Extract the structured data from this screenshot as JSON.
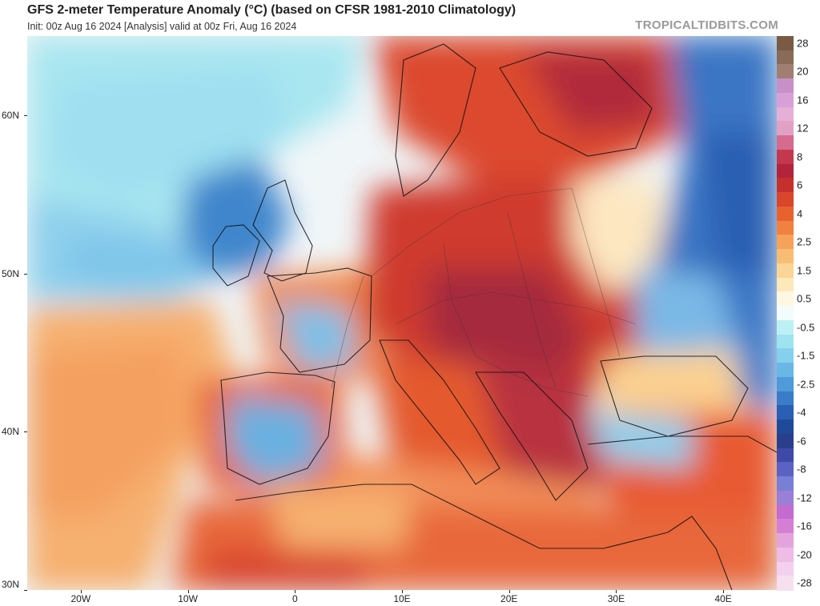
{
  "header": {
    "title": "GFS 2-meter Temperature Anomaly (°C) (based on CFSR 1981-2010 Climatology)",
    "subtitle": "Init: 00z Aug 16 2024   [Analysis]   valid at 00z Fri, Aug 16 2024",
    "brand": "TROPICALTIDBITS.COM"
  },
  "map": {
    "lat_range": [
      30,
      65
    ],
    "lon_range": [
      -25,
      45
    ],
    "lat_labels": [
      {
        "lat": 60,
        "text": "60N"
      },
      {
        "lat": 50,
        "text": "50N"
      },
      {
        "lat": 40,
        "text": "40N"
      },
      {
        "lat": 30,
        "text": "30N"
      }
    ],
    "lon_labels": [
      {
        "lon": -20,
        "text": "20W"
      },
      {
        "lon": -10,
        "text": "10W"
      },
      {
        "lon": 0,
        "text": "0"
      },
      {
        "lon": 10,
        "text": "10E"
      },
      {
        "lon": 20,
        "text": "20E"
      },
      {
        "lon": 30,
        "text": "30E"
      },
      {
        "lon": 40,
        "text": "40E"
      }
    ]
  },
  "colorbar": {
    "bins": [
      {
        "label": "28",
        "color": "#7a5a45"
      },
      {
        "label": "",
        "color": "#8a6a58"
      },
      {
        "label": "20",
        "color": "#a07f72"
      },
      {
        "label": "",
        "color": "#c890c8"
      },
      {
        "label": "16",
        "color": "#d9a0d8"
      },
      {
        "label": "",
        "color": "#e6b0d6"
      },
      {
        "label": "12",
        "color": "#e3a0c6"
      },
      {
        "label": "",
        "color": "#d56b8e"
      },
      {
        "label": "8",
        "color": "#c4384f"
      },
      {
        "label": "",
        "color": "#b3243c"
      },
      {
        "label": "6",
        "color": "#c6302c"
      },
      {
        "label": "",
        "color": "#d9462b"
      },
      {
        "label": "4",
        "color": "#e8622f"
      },
      {
        "label": "",
        "color": "#f0813e"
      },
      {
        "label": "2.5",
        "color": "#f6a25a"
      },
      {
        "label": "",
        "color": "#f8bd75"
      },
      {
        "label": "1.5",
        "color": "#fbd595"
      },
      {
        "label": "",
        "color": "#fce8b8"
      },
      {
        "label": "0.5",
        "color": "#fff7e2"
      },
      {
        "label": "",
        "color": "#f4fbfd"
      },
      {
        "label": "-0.5",
        "color": "#bdf0f4"
      },
      {
        "label": "",
        "color": "#9ee3ef"
      },
      {
        "label": "-1.5",
        "color": "#85d0ec"
      },
      {
        "label": "",
        "color": "#6ab7e6"
      },
      {
        "label": "-2.5",
        "color": "#4f9ad9"
      },
      {
        "label": "",
        "color": "#3a7cc8"
      },
      {
        "label": "-4",
        "color": "#2a5fb3"
      },
      {
        "label": "",
        "color": "#1f4a99"
      },
      {
        "label": "-6",
        "color": "#2a3f8c"
      },
      {
        "label": "",
        "color": "#3f4aa8"
      },
      {
        "label": "-8",
        "color": "#5a63c3"
      },
      {
        "label": "",
        "color": "#7a7fd6"
      },
      {
        "label": "-12",
        "color": "#9a7fd6"
      },
      {
        "label": "",
        "color": "#c46bd0"
      },
      {
        "label": "-16",
        "color": "#d47fd4"
      },
      {
        "label": "",
        "color": "#e3a4dd"
      },
      {
        "label": "-20",
        "color": "#eebce6"
      },
      {
        "label": "",
        "color": "#f3d0ee"
      },
      {
        "label": "-28",
        "color": "#f6e0f0"
      }
    ]
  }
}
